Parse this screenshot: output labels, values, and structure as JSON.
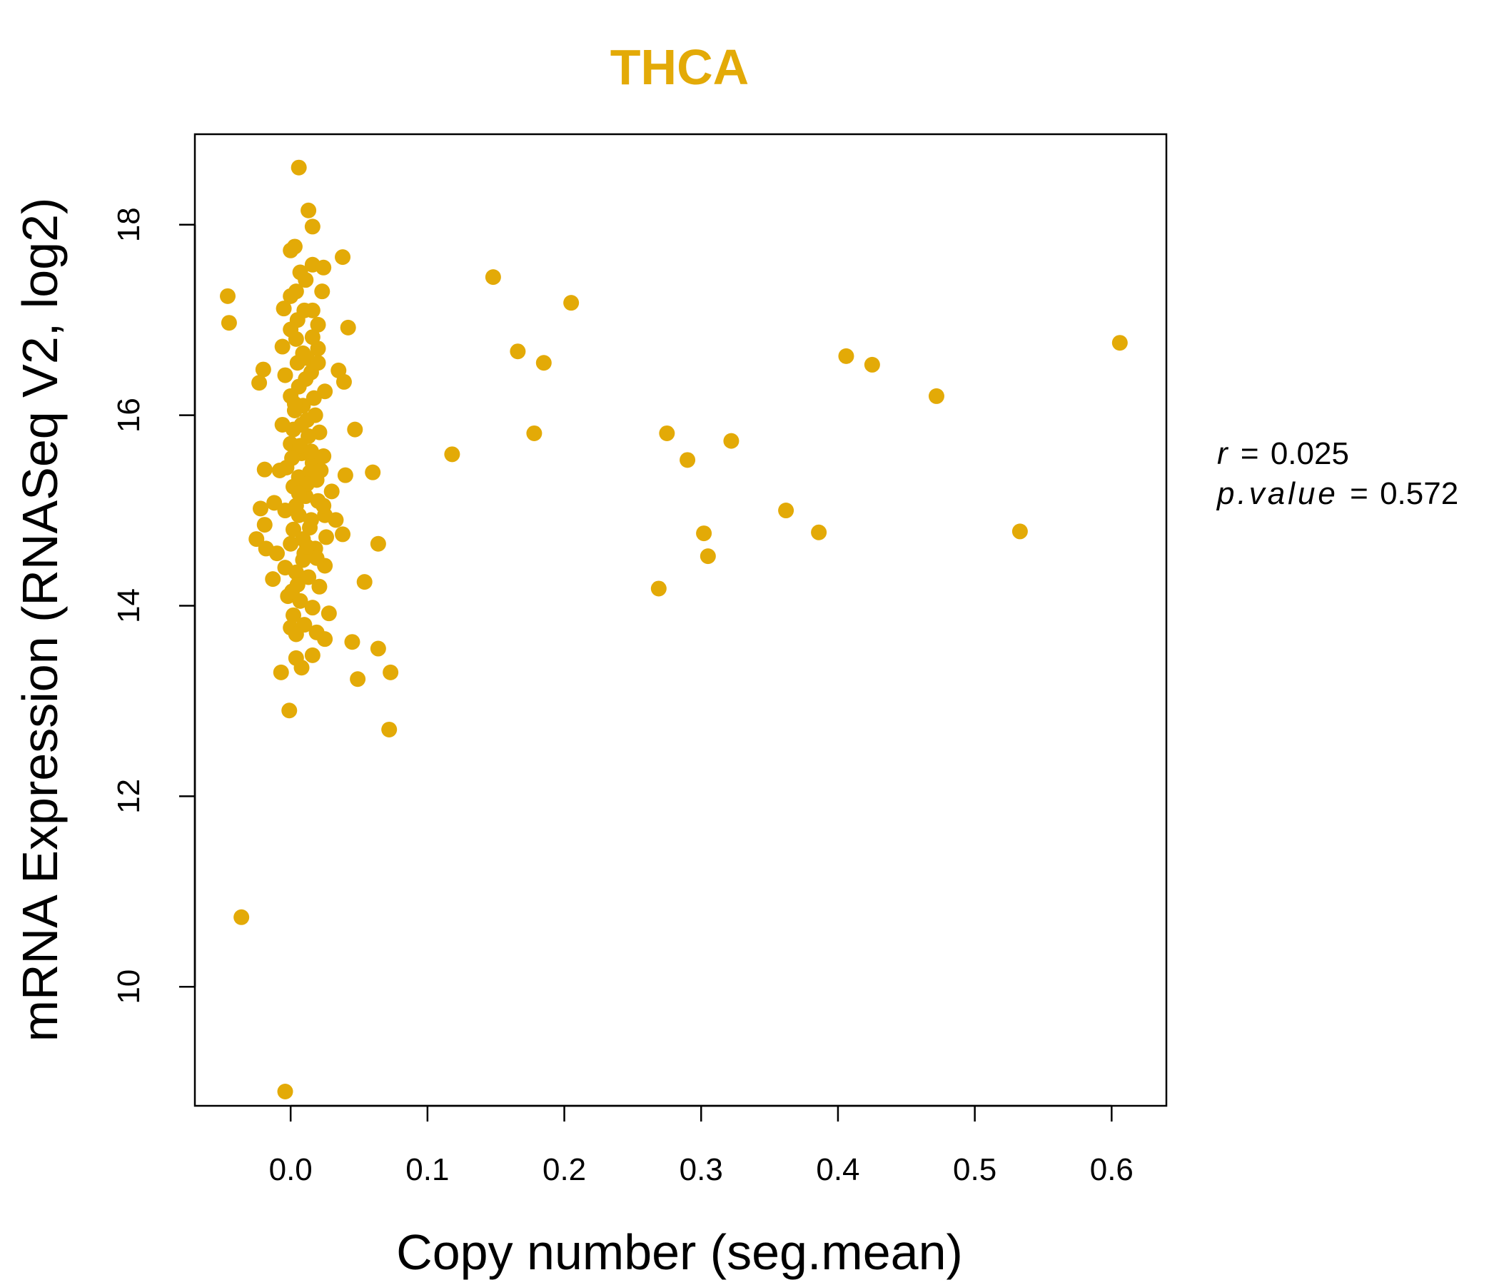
{
  "chart_data": {
    "type": "scatter",
    "title": "THCA",
    "xlabel": "Copy number (seg.mean)",
    "ylabel": "mRNA Expression (RNASeq V2, log2)",
    "xlim": [
      -0.07,
      0.64
    ],
    "ylim": [
      8.75,
      18.95
    ],
    "xticks": [
      0.0,
      0.1,
      0.2,
      0.3,
      0.4,
      0.5,
      0.6
    ],
    "xtick_labels": [
      "0.0",
      "0.1",
      "0.2",
      "0.3",
      "0.4",
      "0.5",
      "0.6"
    ],
    "yticks": [
      10,
      12,
      14,
      16,
      18
    ],
    "ytick_labels": [
      "10",
      "12",
      "14",
      "16",
      "18"
    ],
    "grid": false,
    "point_color": "#E3AA07",
    "title_color": "#E3AA07",
    "stats": {
      "r_label": "r",
      "r_value": "0.025",
      "p_label": "p.value",
      "p_value": "0.572"
    },
    "series": [
      {
        "name": "samples",
        "points": [
          [
            0.006,
            18.6
          ],
          [
            0.013,
            18.15
          ],
          [
            0.016,
            17.98
          ],
          [
            0.003,
            17.77
          ],
          [
            0.0,
            17.73
          ],
          [
            0.007,
            17.5
          ],
          [
            0.016,
            17.58
          ],
          [
            0.024,
            17.55
          ],
          [
            0.038,
            17.66
          ],
          [
            0.148,
            17.45
          ],
          [
            0.205,
            17.18
          ],
          [
            -0.046,
            17.25
          ],
          [
            -0.045,
            16.97
          ],
          [
            0.0,
            17.25
          ],
          [
            0.004,
            17.3
          ],
          [
            0.023,
            17.3
          ],
          [
            0.01,
            17.1
          ],
          [
            -0.005,
            17.12
          ],
          [
            0.016,
            17.1
          ],
          [
            0.02,
            16.95
          ],
          [
            0.042,
            16.92
          ],
          [
            0.166,
            16.67
          ],
          [
            0.185,
            16.55
          ],
          [
            0.606,
            16.76
          ],
          [
            0.406,
            16.62
          ],
          [
            0.425,
            16.53
          ],
          [
            0.472,
            16.2
          ],
          [
            -0.02,
            16.48
          ],
          [
            -0.023,
            16.34
          ],
          [
            -0.006,
            16.72
          ],
          [
            0.004,
            16.8
          ],
          [
            0.012,
            16.6
          ],
          [
            0.02,
            16.7
          ],
          [
            0.035,
            16.47
          ],
          [
            0.039,
            16.35
          ],
          [
            -0.004,
            16.42
          ],
          [
            0.006,
            16.3
          ],
          [
            0.015,
            16.45
          ],
          [
            0.025,
            16.25
          ],
          [
            0.0,
            16.2
          ],
          [
            0.009,
            16.1
          ],
          [
            0.018,
            16.0
          ],
          [
            -0.006,
            15.9
          ],
          [
            0.002,
            15.85
          ],
          [
            0.012,
            15.95
          ],
          [
            0.021,
            15.82
          ],
          [
            0.047,
            15.85
          ],
          [
            0.178,
            15.81
          ],
          [
            0.275,
            15.81
          ],
          [
            0.322,
            15.73
          ],
          [
            0.118,
            15.59
          ],
          [
            0.29,
            15.53
          ],
          [
            0.0,
            15.7
          ],
          [
            0.008,
            15.6
          ],
          [
            0.016,
            15.5
          ],
          [
            0.024,
            15.57
          ],
          [
            -0.003,
            15.45
          ],
          [
            0.006,
            15.35
          ],
          [
            0.014,
            15.4
          ],
          [
            0.03,
            15.2
          ],
          [
            0.04,
            15.37
          ],
          [
            0.06,
            15.4
          ],
          [
            -0.019,
            15.43
          ],
          [
            -0.008,
            15.42
          ],
          [
            0.002,
            15.25
          ],
          [
            0.011,
            15.15
          ],
          [
            0.02,
            15.1
          ],
          [
            -0.012,
            15.08
          ],
          [
            -0.022,
            15.02
          ],
          [
            -0.004,
            15.0
          ],
          [
            0.006,
            14.95
          ],
          [
            0.015,
            14.9
          ],
          [
            0.025,
            14.95
          ],
          [
            0.033,
            14.9
          ],
          [
            0.038,
            14.75
          ],
          [
            0.362,
            15.0
          ],
          [
            0.386,
            14.77
          ],
          [
            0.302,
            14.76
          ],
          [
            0.533,
            14.78
          ],
          [
            0.305,
            14.52
          ],
          [
            -0.025,
            14.7
          ],
          [
            -0.019,
            14.85
          ],
          [
            -0.018,
            14.6
          ],
          [
            -0.01,
            14.55
          ],
          [
            0.0,
            14.65
          ],
          [
            0.009,
            14.7
          ],
          [
            0.018,
            14.6
          ],
          [
            0.026,
            14.72
          ],
          [
            0.064,
            14.65
          ],
          [
            0.025,
            14.42
          ],
          [
            0.054,
            14.25
          ],
          [
            -0.013,
            14.28
          ],
          [
            -0.004,
            14.4
          ],
          [
            0.004,
            14.35
          ],
          [
            0.013,
            14.3
          ],
          [
            0.021,
            14.2
          ],
          [
            0.269,
            14.18
          ],
          [
            -0.002,
            14.1
          ],
          [
            0.007,
            14.05
          ],
          [
            0.016,
            13.98
          ],
          [
            0.028,
            13.92
          ],
          [
            0.002,
            13.9
          ],
          [
            0.01,
            13.8
          ],
          [
            0.0,
            13.77
          ],
          [
            0.019,
            13.72
          ],
          [
            0.025,
            13.65
          ],
          [
            0.004,
            13.7
          ],
          [
            0.045,
            13.62
          ],
          [
            0.064,
            13.55
          ],
          [
            0.016,
            13.48
          ],
          [
            0.004,
            13.45
          ],
          [
            0.008,
            13.35
          ],
          [
            -0.007,
            13.3
          ],
          [
            0.073,
            13.3
          ],
          [
            0.049,
            13.23
          ],
          [
            -0.001,
            12.9
          ],
          [
            0.072,
            12.7
          ],
          [
            -0.036,
            10.73
          ],
          [
            -0.004,
            8.9
          ],
          [
            0.005,
            16.55
          ],
          [
            0.011,
            16.38
          ],
          [
            0.017,
            16.18
          ],
          [
            0.003,
            16.05
          ],
          [
            0.013,
            15.78
          ],
          [
            0.007,
            15.68
          ],
          [
            0.019,
            15.32
          ],
          [
            0.001,
            15.55
          ],
          [
            0.012,
            15.28
          ],
          [
            0.004,
            15.05
          ],
          [
            0.014,
            14.82
          ],
          [
            0.002,
            14.8
          ],
          [
            0.009,
            14.48
          ],
          [
            0.019,
            14.5
          ],
          [
            0.001,
            14.15
          ],
          [
            0.01,
            14.55
          ],
          [
            0.022,
            15.42
          ],
          [
            0.008,
            15.9
          ],
          [
            0.016,
            16.82
          ],
          [
            0.005,
            17.0
          ],
          [
            0.011,
            17.42
          ],
          [
            0.0,
            16.9
          ],
          [
            0.02,
            16.55
          ],
          [
            0.009,
            16.65
          ],
          [
            0.003,
            16.12
          ],
          [
            0.015,
            15.62
          ],
          [
            0.006,
            15.18
          ],
          [
            0.024,
            15.05
          ],
          [
            0.012,
            14.62
          ],
          [
            0.005,
            14.22
          ]
        ]
      }
    ]
  }
}
